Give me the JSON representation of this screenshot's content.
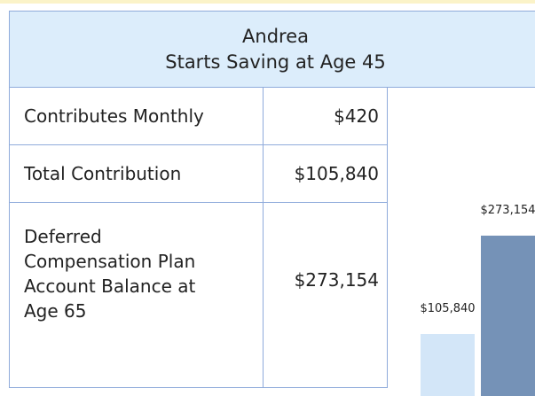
{
  "header": {
    "lines": [
      "Andrea",
      "Starts Saving at Age 45"
    ]
  },
  "table": {
    "rows": [
      [
        "Contributes Monthly",
        "$420"
      ],
      [
        "Total Contribution",
        "$105,840"
      ],
      [
        "Deferred Compensation Plan Account Balance at Age 65",
        "$273,154"
      ]
    ]
  },
  "chart": {
    "type": "bar",
    "values": [
      105840,
      273154
    ],
    "value_labels": [
      "$105,840",
      "$273,154"
    ],
    "colors": [
      "#d3e6f8",
      "#7592b7"
    ]
  }
}
